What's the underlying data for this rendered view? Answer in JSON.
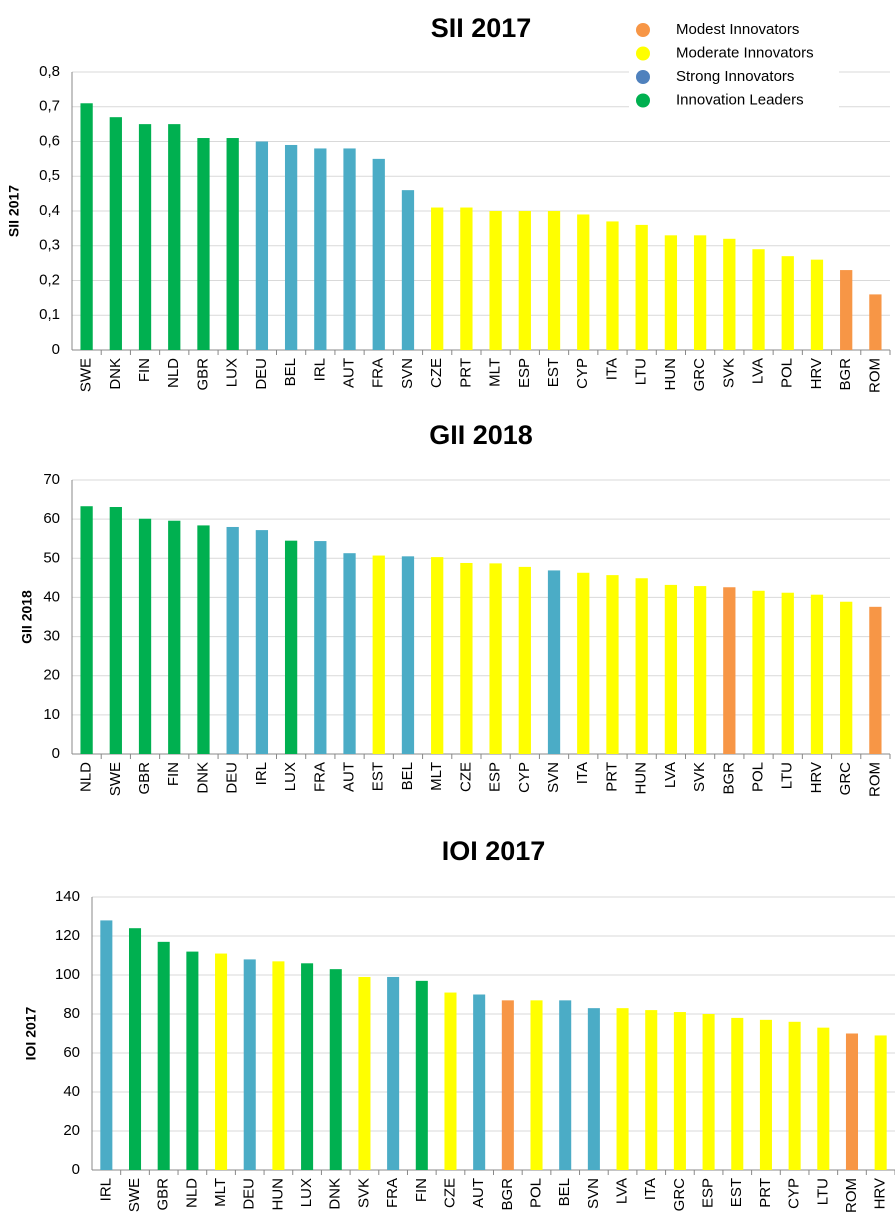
{
  "chart_data": [
    {
      "type": "bar",
      "title": "SII 2017",
      "ylabel": "SII 2017",
      "categories": [
        "SWE",
        "DNK",
        "FIN",
        "NLD",
        "GBR",
        "LUX",
        "DEU",
        "BEL",
        "IRL",
        "AUT",
        "FRA",
        "SVN",
        "CZE",
        "PRT",
        "MLT",
        "ESP",
        "EST",
        "CYP",
        "ITA",
        "LTU",
        "HUN",
        "GRC",
        "SVK",
        "LVA",
        "POL",
        "HRV",
        "BGR",
        "ROM"
      ],
      "values": [
        0.71,
        0.67,
        0.65,
        0.65,
        0.61,
        0.61,
        0.6,
        0.59,
        0.58,
        0.58,
        0.55,
        0.46,
        0.41,
        0.41,
        0.4,
        0.4,
        0.4,
        0.39,
        0.37,
        0.36,
        0.33,
        0.33,
        0.32,
        0.29,
        0.27,
        0.26,
        0.23,
        0.16
      ],
      "colors": [
        "#00b050",
        "#00b050",
        "#00b050",
        "#00b050",
        "#00b050",
        "#00b050",
        "#4bacc6",
        "#4bacc6",
        "#4bacc6",
        "#4bacc6",
        "#4bacc6",
        "#4bacc6",
        "#ffff00",
        "#ffff00",
        "#ffff00",
        "#ffff00",
        "#ffff00",
        "#ffff00",
        "#ffff00",
        "#ffff00",
        "#ffff00",
        "#ffff00",
        "#ffff00",
        "#ffff00",
        "#ffff00",
        "#ffff00",
        "#f79646",
        "#f79646"
      ],
      "ylim": [
        0,
        0.8
      ],
      "yticks": [
        0,
        {
          "value": 0.1,
          "label": "0,1"
        },
        {
          "value": 0.2,
          "label": "0,2"
        },
        {
          "value": 0.3,
          "label": "0,3"
        },
        {
          "value": 0.4,
          "label": "0,4"
        },
        {
          "value": 0.5,
          "label": "0,5"
        },
        {
          "value": 0.6,
          "label": "0,6"
        },
        {
          "value": 0.7,
          "label": "0,7"
        },
        {
          "value": 0.8,
          "label": "0,8"
        }
      ],
      "grid": true,
      "legend": [
        {
          "name": "Modest Innovators",
          "color": "#f79646"
        },
        {
          "name": "Moderate Innovators",
          "color": "#ffff00"
        },
        {
          "name": "Strong Innovators",
          "color": "#4f81bd"
        },
        {
          "name": "Innovation Leaders",
          "color": "#00b050"
        }
      ],
      "legend_position": "top-right"
    },
    {
      "type": "bar",
      "title": "GII 2018",
      "ylabel": "GII 2018",
      "categories": [
        "NLD",
        "SWE",
        "GBR",
        "FIN",
        "DNK",
        "DEU",
        "IRL",
        "LUX",
        "FRA",
        "AUT",
        "EST",
        "BEL",
        "MLT",
        "CZE",
        "ESP",
        "CYP",
        "SVN",
        "ITA",
        "PRT",
        "HUN",
        "LVA",
        "SVK",
        "BGR",
        "POL",
        "LTU",
        "HRV",
        "GRC",
        "ROM"
      ],
      "values": [
        63.3,
        63.1,
        60.1,
        59.6,
        58.4,
        58.0,
        57.2,
        54.5,
        54.4,
        51.3,
        50.7,
        50.5,
        50.3,
        48.8,
        48.7,
        47.8,
        46.9,
        46.3,
        45.7,
        44.9,
        43.2,
        42.9,
        42.6,
        41.7,
        41.2,
        40.7,
        38.9,
        37.6
      ],
      "colors": [
        "#00b050",
        "#00b050",
        "#00b050",
        "#00b050",
        "#00b050",
        "#4bacc6",
        "#4bacc6",
        "#00b050",
        "#4bacc6",
        "#4bacc6",
        "#ffff00",
        "#4bacc6",
        "#ffff00",
        "#ffff00",
        "#ffff00",
        "#ffff00",
        "#4bacc6",
        "#ffff00",
        "#ffff00",
        "#ffff00",
        "#ffff00",
        "#ffff00",
        "#f79646",
        "#ffff00",
        "#ffff00",
        "#ffff00",
        "#ffff00",
        "#f79646"
      ],
      "ylim": [
        0,
        70
      ],
      "yticks": [
        0,
        10,
        20,
        30,
        40,
        50,
        60,
        70
      ],
      "grid": true
    },
    {
      "type": "bar",
      "title": "IOI 2017",
      "ylabel": "IOI 2017",
      "categories": [
        "IRL",
        "SWE",
        "GBR",
        "NLD",
        "MLT",
        "DEU",
        "HUN",
        "LUX",
        "DNK",
        "SVK",
        "FRA",
        "FIN",
        "CZE",
        "AUT",
        "BGR",
        "POL",
        "BEL",
        "SVN",
        "LVA",
        "ITA",
        "GRC",
        "ESP",
        "EST",
        "PRT",
        "CYP",
        "LTU",
        "ROM",
        "HRV"
      ],
      "values": [
        128,
        124,
        117,
        112,
        111,
        108,
        107,
        106,
        103,
        99,
        99,
        97,
        91,
        90,
        87,
        87,
        87,
        83,
        83,
        82,
        81,
        80,
        78,
        77,
        76,
        73,
        70,
        69
      ],
      "colors": [
        "#4bacc6",
        "#00b050",
        "#00b050",
        "#00b050",
        "#ffff00",
        "#4bacc6",
        "#ffff00",
        "#00b050",
        "#00b050",
        "#ffff00",
        "#4bacc6",
        "#00b050",
        "#ffff00",
        "#4bacc6",
        "#f79646",
        "#ffff00",
        "#4bacc6",
        "#4bacc6",
        "#ffff00",
        "#ffff00",
        "#ffff00",
        "#ffff00",
        "#ffff00",
        "#ffff00",
        "#ffff00",
        "#ffff00",
        "#f79646",
        "#ffff00"
      ],
      "ylim": [
        0,
        140
      ],
      "yticks": [
        0,
        20,
        40,
        60,
        80,
        100,
        120,
        140
      ],
      "grid": true
    }
  ]
}
